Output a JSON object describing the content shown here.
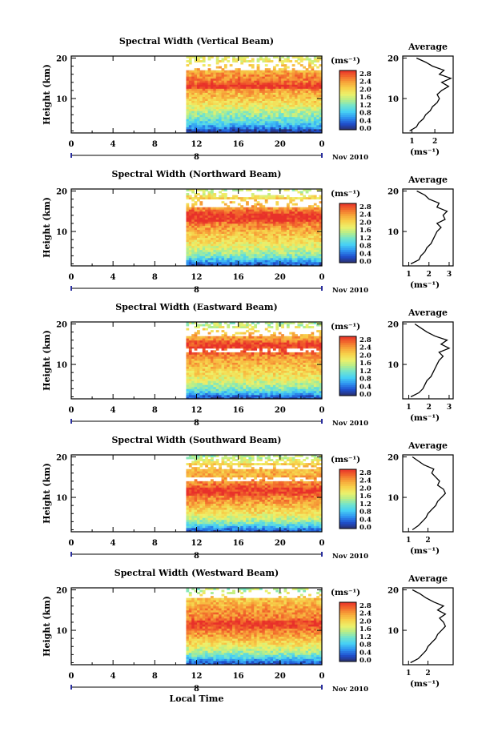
{
  "figure": {
    "xlabel": "Local Time",
    "date_label": "Nov 2010",
    "x_ticks": [
      "0",
      "4",
      "8",
      "12",
      "16",
      "20",
      "0"
    ],
    "day_label": "8",
    "y_label": "Height (km)",
    "y_ticks": [
      "20",
      "10"
    ],
    "colorbar_unit": "(ms⁻¹)",
    "colorbar_ticks": [
      "2.8",
      "2.4",
      "2.0",
      "1.6",
      "1.2",
      "0.8",
      "0.4",
      "0.0"
    ],
    "avg_title": "Average",
    "avg_unit": "(ms⁻¹)",
    "colormap": [
      "#2a2f6e",
      "#1f4fcf",
      "#2f93f0",
      "#46d0f5",
      "#6fe3d0",
      "#b5ee8a",
      "#eef06a",
      "#f7d14a",
      "#f7a53a",
      "#f26a2c",
      "#e8312a"
    ]
  },
  "chart_data": [
    {
      "type": "heatmap",
      "title": "Spectral Width (Vertical Beam)",
      "x_range": [
        0,
        24
      ],
      "y_range": [
        1.5,
        20.5
      ],
      "value_range": [
        0.0,
        2.8
      ],
      "data_start_hour": 11,
      "profile": [
        [
          2,
          0.1
        ],
        [
          3,
          0.6
        ],
        [
          4,
          0.9
        ],
        [
          6,
          1.3
        ],
        [
          8,
          1.7
        ],
        [
          10,
          2.0
        ],
        [
          12,
          2.2
        ],
        [
          13,
          2.9
        ],
        [
          14,
          2.5
        ],
        [
          16,
          2.3
        ],
        [
          18,
          2.0
        ],
        [
          20,
          1.6
        ]
      ],
      "gaps": [
        [
          17,
          19
        ]
      ],
      "average": {
        "x_ticks": [
          "1",
          "2"
        ],
        "x_range": [
          0.6,
          2.8
        ],
        "points": [
          [
            0.9,
            2
          ],
          [
            1.2,
            3
          ],
          [
            1.3,
            4
          ],
          [
            1.5,
            5
          ],
          [
            1.6,
            6
          ],
          [
            1.8,
            7
          ],
          [
            1.9,
            8
          ],
          [
            2.1,
            9
          ],
          [
            2.2,
            10
          ],
          [
            2.1,
            11
          ],
          [
            2.3,
            12
          ],
          [
            2.6,
            13
          ],
          [
            2.3,
            14
          ],
          [
            2.7,
            15
          ],
          [
            2.2,
            16
          ],
          [
            2.4,
            17
          ],
          [
            1.9,
            18
          ],
          [
            1.6,
            19
          ],
          [
            1.2,
            20
          ]
        ]
      }
    },
    {
      "type": "heatmap",
      "title": "Spectral Width (Northward Beam)",
      "x_range": [
        0,
        24
      ],
      "y_range": [
        1.5,
        20.5
      ],
      "value_range": [
        0.0,
        2.8
      ],
      "data_start_hour": 11,
      "profile": [
        [
          2,
          0.3
        ],
        [
          3,
          0.8
        ],
        [
          4,
          1.2
        ],
        [
          6,
          1.6
        ],
        [
          8,
          1.9
        ],
        [
          10,
          2.1
        ],
        [
          12,
          2.4
        ],
        [
          13,
          2.8
        ],
        [
          14,
          2.8
        ],
        [
          15,
          2.6
        ],
        [
          16,
          2.2
        ],
        [
          18,
          2.0
        ],
        [
          20,
          1.5
        ]
      ],
      "gaps": [
        [
          16,
          18
        ],
        [
          19,
          20
        ]
      ],
      "average": {
        "x_ticks": [
          "1",
          "2",
          "3"
        ],
        "x_range": [
          0.7,
          3.2
        ],
        "points": [
          [
            1.1,
            2
          ],
          [
            1.5,
            3
          ],
          [
            1.6,
            4
          ],
          [
            1.8,
            5
          ],
          [
            1.9,
            6
          ],
          [
            2.1,
            7
          ],
          [
            2.2,
            8
          ],
          [
            2.3,
            9
          ],
          [
            2.4,
            10
          ],
          [
            2.6,
            11
          ],
          [
            2.4,
            12
          ],
          [
            2.8,
            13
          ],
          [
            2.7,
            14
          ],
          [
            2.9,
            15
          ],
          [
            2.4,
            16
          ],
          [
            2.5,
            17
          ],
          [
            2.0,
            18
          ],
          [
            1.8,
            19
          ],
          [
            1.4,
            20
          ]
        ]
      }
    },
    {
      "type": "heatmap",
      "title": "Spectral Width (Eastward Beam)",
      "x_range": [
        0,
        24
      ],
      "y_range": [
        1.5,
        20.5
      ],
      "value_range": [
        0.0,
        2.8
      ],
      "data_start_hour": 11,
      "profile": [
        [
          2,
          0.3
        ],
        [
          3,
          0.8
        ],
        [
          4,
          1.2
        ],
        [
          6,
          1.6
        ],
        [
          8,
          1.9
        ],
        [
          10,
          2.1
        ],
        [
          12,
          2.3
        ],
        [
          13,
          2.6
        ],
        [
          15,
          2.8
        ],
        [
          16,
          2.4
        ],
        [
          18,
          2.0
        ],
        [
          20,
          1.4
        ]
      ],
      "gaps": [
        [
          13,
          14
        ],
        [
          17,
          19
        ]
      ],
      "average": {
        "x_ticks": [
          "1",
          "2",
          "3"
        ],
        "x_range": [
          0.7,
          3.2
        ],
        "points": [
          [
            1.1,
            2
          ],
          [
            1.5,
            3
          ],
          [
            1.7,
            4
          ],
          [
            1.8,
            5
          ],
          [
            1.9,
            6
          ],
          [
            2.1,
            7
          ],
          [
            2.2,
            8
          ],
          [
            2.3,
            9
          ],
          [
            2.4,
            10
          ],
          [
            2.5,
            11
          ],
          [
            2.7,
            12
          ],
          [
            2.5,
            13
          ],
          [
            3.0,
            14
          ],
          [
            2.6,
            15
          ],
          [
            2.9,
            16
          ],
          [
            2.3,
            17
          ],
          [
            1.9,
            18
          ],
          [
            1.6,
            19
          ],
          [
            1.3,
            20
          ]
        ]
      }
    },
    {
      "type": "heatmap",
      "title": "Spectral Width (Southward Beam)",
      "x_range": [
        0,
        24
      ],
      "y_range": [
        1.5,
        20.5
      ],
      "value_range": [
        0.0,
        2.8
      ],
      "data_start_hour": 11,
      "profile": [
        [
          2,
          0.3
        ],
        [
          3,
          0.9
        ],
        [
          4,
          1.3
        ],
        [
          6,
          1.8
        ],
        [
          8,
          2.1
        ],
        [
          10,
          2.4
        ],
        [
          11,
          2.7
        ],
        [
          12,
          2.8
        ],
        [
          13,
          2.5
        ],
        [
          15,
          2.2
        ],
        [
          18,
          2.0
        ],
        [
          20,
          1.4
        ]
      ],
      "gaps": [
        [
          14,
          15
        ],
        [
          17,
          18
        ]
      ],
      "average": {
        "x_ticks": [
          "1",
          "2"
        ],
        "x_range": [
          0.7,
          3.3
        ],
        "points": [
          [
            1.2,
            2
          ],
          [
            1.5,
            3
          ],
          [
            1.7,
            4
          ],
          [
            1.9,
            5
          ],
          [
            2.0,
            6
          ],
          [
            2.2,
            7
          ],
          [
            2.4,
            8
          ],
          [
            2.5,
            9
          ],
          [
            2.7,
            10
          ],
          [
            2.9,
            11
          ],
          [
            2.8,
            12
          ],
          [
            2.5,
            13
          ],
          [
            2.6,
            14
          ],
          [
            2.4,
            15
          ],
          [
            2.2,
            16
          ],
          [
            2.3,
            17
          ],
          [
            1.8,
            18
          ],
          [
            1.5,
            19
          ],
          [
            1.2,
            20
          ]
        ]
      }
    },
    {
      "type": "heatmap",
      "title": "Spectral Width (Westward Beam)",
      "x_range": [
        0,
        24
      ],
      "y_range": [
        1.5,
        20.5
      ],
      "value_range": [
        0.0,
        2.8
      ],
      "data_start_hour": 11,
      "profile": [
        [
          2,
          0.3
        ],
        [
          3,
          0.8
        ],
        [
          4,
          1.2
        ],
        [
          6,
          1.7
        ],
        [
          8,
          2.1
        ],
        [
          10,
          2.4
        ],
        [
          11,
          2.7
        ],
        [
          12,
          2.8
        ],
        [
          13,
          2.4
        ],
        [
          15,
          2.3
        ],
        [
          18,
          2.0
        ],
        [
          20,
          1.4
        ]
      ],
      "gaps": [
        [
          18,
          20
        ]
      ],
      "average": {
        "x_ticks": [
          "1",
          "2"
        ],
        "x_range": [
          0.7,
          3.3
        ],
        "points": [
          [
            1.1,
            2
          ],
          [
            1.5,
            3
          ],
          [
            1.7,
            4
          ],
          [
            1.9,
            5
          ],
          [
            2.0,
            6
          ],
          [
            2.2,
            7
          ],
          [
            2.4,
            8
          ],
          [
            2.5,
            9
          ],
          [
            2.7,
            10
          ],
          [
            2.9,
            11
          ],
          [
            2.8,
            12
          ],
          [
            2.6,
            13
          ],
          [
            2.9,
            14
          ],
          [
            2.5,
            15
          ],
          [
            2.8,
            16
          ],
          [
            2.3,
            17
          ],
          [
            1.9,
            18
          ],
          [
            1.6,
            19
          ],
          [
            1.2,
            20
          ]
        ]
      }
    }
  ]
}
